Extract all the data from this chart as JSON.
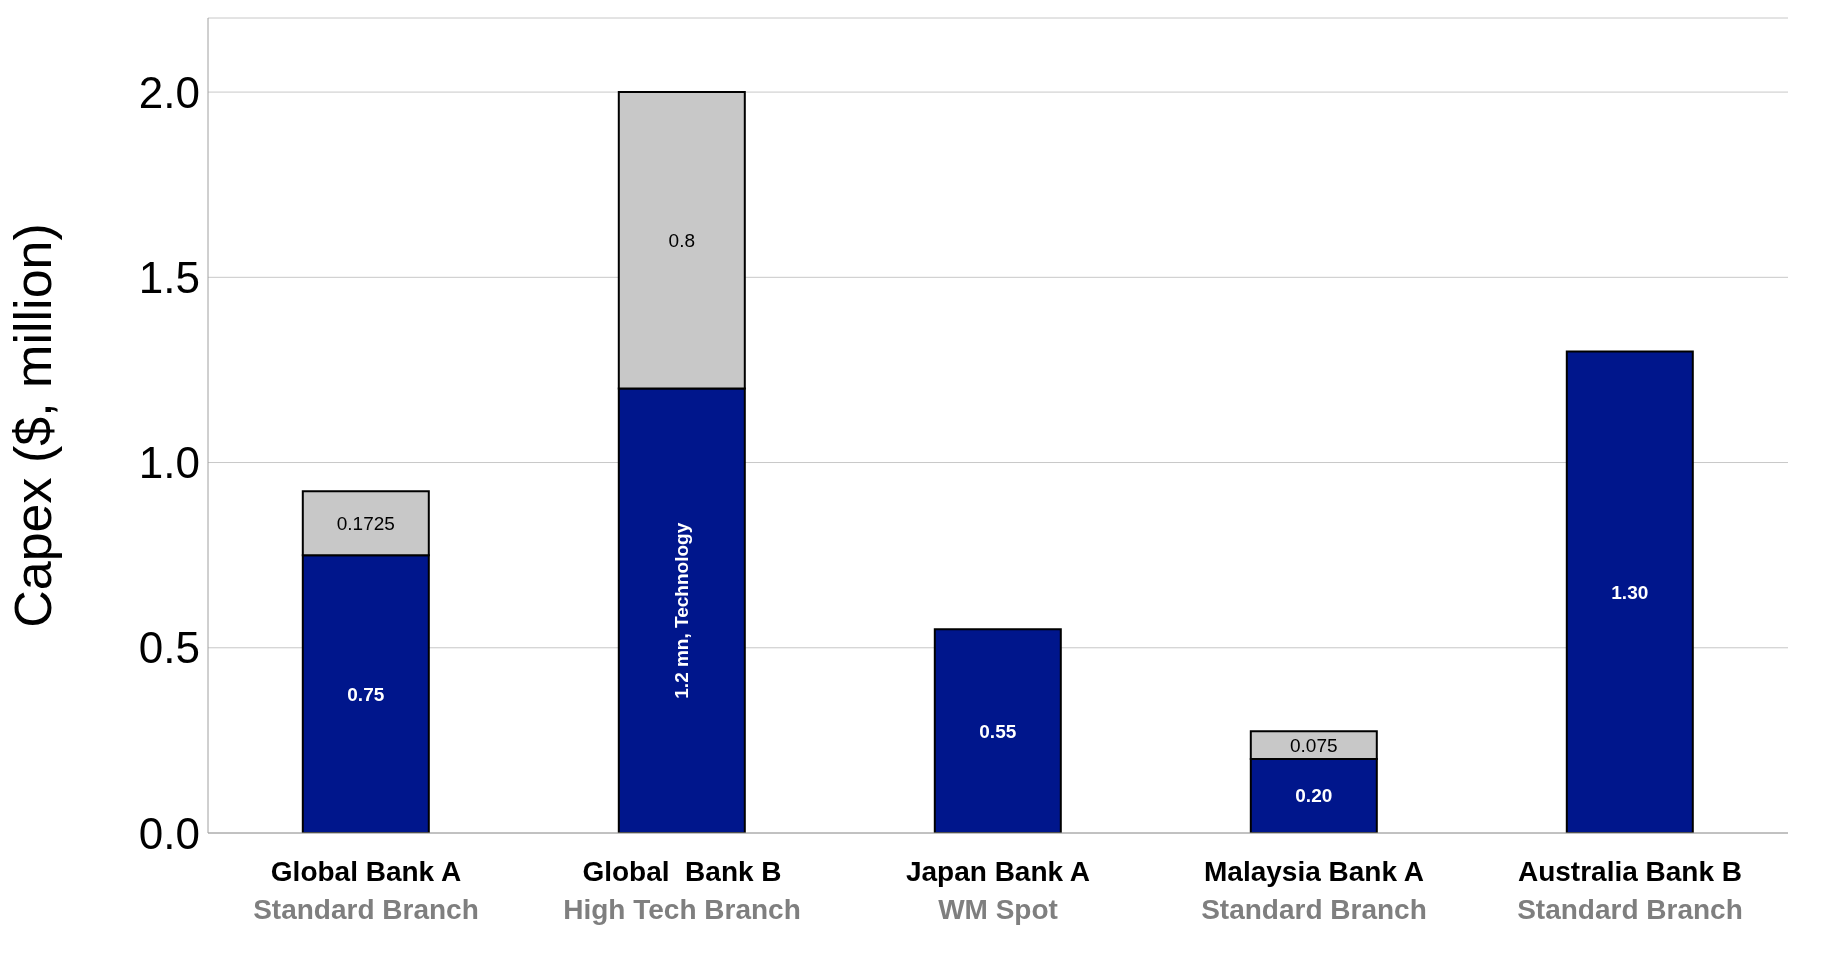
{
  "chart_data": {
    "type": "bar",
    "stacked": true,
    "ylabel": "Capex ($, million)",
    "categories": [
      "Global Bank A\nStandard Branch",
      "Global  Bank B\nHigh Tech Branch",
      "Japan Bank A\nWM Spot",
      "Malaysia Bank A\nStandard Branch",
      "Australia Bank B\nStandard Branch"
    ],
    "series": [
      {
        "color": "#00168c",
        "values": [
          0.75,
          1.2,
          0.55,
          0.2,
          1.3
        ],
        "value_labels": [
          "0.75",
          "1.2 mn, Technology",
          "0.55",
          "0.20",
          "1.30"
        ]
      },
      {
        "color": "#c8c8c8",
        "values": [
          0.1725,
          0.8,
          null,
          0.075,
          null
        ],
        "value_labels": [
          "0.1725",
          "0.8",
          null,
          "0.075",
          null
        ]
      }
    ],
    "ylim": [
      0,
      2.2
    ],
    "yticks": [
      {
        "value": 0,
        "label": "0.0"
      },
      {
        "value": 0.5,
        "label": "0.5"
      },
      {
        "value": 1,
        "label": "1.0"
      },
      {
        "value": 1.5,
        "label": "1.5"
      },
      {
        "value": 2,
        "label": "2.0"
      }
    ],
    "grid": "y",
    "legend": false
  }
}
